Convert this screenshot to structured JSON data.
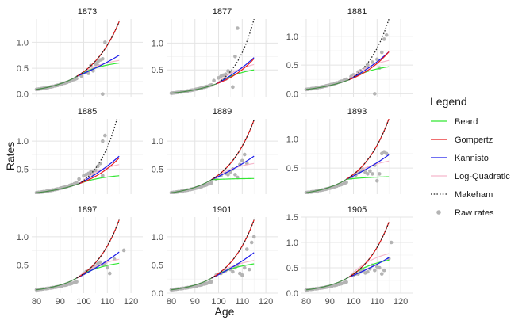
{
  "chart_data": {
    "type": "faceted-line-scatter",
    "xlabel": "Age",
    "ylabel": "Rates",
    "x_ticks": [
      80,
      90,
      100,
      110,
      120
    ],
    "xlim": [
      78,
      125
    ],
    "legend": {
      "title": "Legend",
      "placement": "right",
      "items": [
        {
          "label": "Beard",
          "color": "#33e633",
          "style": "line"
        },
        {
          "label": "Gompertz",
          "color": "#e8191b",
          "style": "line"
        },
        {
          "label": "Kannisto",
          "color": "#1b1bea",
          "style": "line"
        },
        {
          "label": "Log-Quadratic",
          "color": "#f5b8cc",
          "style": "line"
        },
        {
          "label": "Makeham",
          "color": "#222222",
          "style": "dotted"
        },
        {
          "label": "Raw rates",
          "color": "#b4b4b4",
          "style": "point"
        }
      ]
    },
    "panels": [
      {
        "title": "1873",
        "ylim": [
          -0.05,
          1.45
        ],
        "yticks": [
          0.0,
          0.5,
          1.0
        ],
        "gompertz": [
          0.09,
          1.4
        ],
        "makeham_end": 1.4,
        "kannisto_end": 0.75,
        "beard_end": 0.6,
        "logquad_end": 0.65,
        "split_age": 97,
        "has_makeham_fit": false,
        "raw_extra": [
          [
            99,
            0.35
          ],
          [
            101,
            0.42
          ],
          [
            102,
            0.4
          ],
          [
            103,
            0.55
          ],
          [
            104,
            0.5
          ],
          [
            104,
            0.45
          ],
          [
            105,
            0.58
          ],
          [
            106,
            0.62
          ],
          [
            107,
            0.66
          ],
          [
            108,
            0.68
          ],
          [
            109,
            1.0
          ],
          [
            108,
            0.0
          ],
          [
            102,
            0.45
          ],
          [
            106,
            0.55
          ]
        ]
      },
      {
        "title": "1877",
        "ylim": [
          0.0,
          1.45
        ],
        "yticks": [
          0.5,
          1.0
        ],
        "gompertz": [
          0.065,
          0.71
        ],
        "makeham_end": 1.45,
        "kannisto_end": 0.73,
        "beard_end": 0.5,
        "logquad_end": 0.6,
        "split_age": 99,
        "has_makeham_fit": true,
        "raw_extra": [
          [
            98,
            0.3
          ],
          [
            100,
            0.35
          ],
          [
            101,
            0.38
          ],
          [
            102,
            0.4
          ],
          [
            103,
            0.42
          ],
          [
            104,
            0.48
          ],
          [
            105,
            0.45
          ],
          [
            106,
            0.18
          ],
          [
            107,
            0.75
          ],
          [
            108,
            1.28
          ],
          [
            103,
            0.33
          ]
        ]
      },
      {
        "title": "1881",
        "ylim": [
          -0.05,
          1.3
        ],
        "yticks": [
          0.0,
          0.5,
          1.0
        ],
        "gompertz": [
          0.075,
          0.73
        ],
        "makeham_end": 1.3,
        "kannisto_end": 0.73,
        "beard_end": 0.47,
        "logquad_end": 0.58,
        "split_age": 98,
        "has_makeham_fit": true,
        "raw_extra": [
          [
            99,
            0.3
          ],
          [
            100,
            0.33
          ],
          [
            102,
            0.38
          ],
          [
            103,
            0.4
          ],
          [
            105,
            0.45
          ],
          [
            106,
            0.5
          ],
          [
            108,
            0.55
          ],
          [
            109,
            0.0
          ],
          [
            110,
            0.6
          ],
          [
            112,
            0.72
          ],
          [
            113,
            0.95
          ],
          [
            114,
            1.02
          ],
          [
            111,
            0.45
          ]
        ]
      },
      {
        "title": "1885",
        "ylim": [
          0.05,
          1.4
        ],
        "yticks": [
          0.5,
          1.0
        ],
        "gompertz": [
          0.075,
          0.7
        ],
        "makeham_end": 1.55,
        "kannisto_end": 0.73,
        "beard_end": 0.38,
        "logquad_end": 0.58,
        "split_age": 98,
        "has_makeham_fit": true,
        "raw_extra": [
          [
            98,
            0.32
          ],
          [
            100,
            0.38
          ],
          [
            101,
            0.4
          ],
          [
            102,
            0.42
          ],
          [
            103,
            0.45
          ],
          [
            104,
            0.46
          ],
          [
            105,
            0.48
          ],
          [
            106,
            0.55
          ],
          [
            107,
            0.6
          ],
          [
            108,
            0.38
          ],
          [
            108,
            1.0
          ],
          [
            109,
            1.1
          ],
          [
            104,
            0.4
          ]
        ]
      },
      {
        "title": "1889",
        "ylim": [
          0.05,
          1.4
        ],
        "yticks": [
          0.5,
          1.0
        ],
        "gompertz": [
          0.075,
          1.38
        ],
        "makeham_end": 1.38,
        "kannisto_end": 0.73,
        "beard_end": 0.33,
        "logquad_end": 0.6,
        "split_age": 97,
        "has_makeham_fit": false,
        "raw_extra": [
          [
            99,
            0.32
          ],
          [
            101,
            0.38
          ],
          [
            103,
            0.42
          ],
          [
            104,
            0.4
          ],
          [
            105,
            0.45
          ],
          [
            106,
            0.5
          ],
          [
            107,
            0.4
          ],
          [
            108,
            0.35
          ],
          [
            109,
            0.58
          ],
          [
            110,
            0.65
          ],
          [
            111,
            0.76
          ],
          [
            112,
            0.6
          ]
        ]
      },
      {
        "title": "1893",
        "ylim": [
          0.05,
          1.35
        ],
        "yticks": [
          0.5,
          1.0
        ],
        "gompertz": [
          0.075,
          1.35
        ],
        "makeham_end": 1.35,
        "kannisto_end": 0.73,
        "beard_end": 0.35,
        "logquad_end": 0.62,
        "split_age": 97,
        "has_makeham_fit": false,
        "raw_extra": [
          [
            99,
            0.33
          ],
          [
            101,
            0.38
          ],
          [
            102,
            0.42
          ],
          [
            103,
            0.45
          ],
          [
            104,
            0.48
          ],
          [
            105,
            0.43
          ],
          [
            106,
            0.4
          ],
          [
            107,
            0.45
          ],
          [
            108,
            0.4
          ],
          [
            109,
            0.55
          ],
          [
            110,
            0.28
          ],
          [
            111,
            0.4
          ],
          [
            112,
            0.75
          ],
          [
            113,
            0.78
          ],
          [
            114,
            0.75
          ]
        ]
      },
      {
        "title": "1897",
        "ylim": [
          0.0,
          1.35
        ],
        "yticks": [
          0.5,
          1.0
        ],
        "gompertz": [
          0.06,
          1.3
        ],
        "makeham_end": 1.3,
        "kannisto_end": 0.73,
        "beard_end": 0.53,
        "logquad_end": 0.6,
        "split_age": 97,
        "has_makeham_fit": false,
        "raw_extra": [
          [
            100,
            0.35
          ],
          [
            101,
            0.38
          ],
          [
            102,
            0.4
          ],
          [
            103,
            0.43
          ],
          [
            104,
            0.46
          ],
          [
            105,
            0.48
          ],
          [
            106,
            0.52
          ],
          [
            107,
            0.55
          ],
          [
            108,
            0.5
          ],
          [
            109,
            0.53
          ],
          [
            110,
            0.45
          ],
          [
            111,
            0.35
          ],
          [
            113,
            0.6
          ],
          [
            117,
            0.76
          ]
        ]
      },
      {
        "title": "1901",
        "ylim": [
          0.0,
          1.35
        ],
        "yticks": [
          0.0,
          0.5,
          1.0
        ],
        "gompertz": [
          0.06,
          1.3
        ],
        "makeham_end": 1.3,
        "kannisto_end": 0.72,
        "beard_end": 0.52,
        "logquad_end": 0.58,
        "split_age": 97,
        "has_makeham_fit": false,
        "raw_extra": [
          [
            99,
            0.32
          ],
          [
            101,
            0.35
          ],
          [
            102,
            0.38
          ],
          [
            103,
            0.4
          ],
          [
            105,
            0.42
          ],
          [
            106,
            0.38
          ],
          [
            107,
            0.45
          ],
          [
            108,
            0.5
          ],
          [
            109,
            0.35
          ],
          [
            110,
            0.32
          ],
          [
            111,
            0.45
          ],
          [
            112,
            0.78
          ],
          [
            113,
            0.42
          ],
          [
            114,
            0.9
          ],
          [
            115,
            1.0
          ]
        ]
      },
      {
        "title": "1905",
        "ylim": [
          0.0,
          1.5
        ],
        "yticks": [
          0.0,
          0.5,
          1.0,
          1.5
        ],
        "gompertz": [
          0.065,
          1.4
        ],
        "makeham_end": 1.4,
        "kannisto_end": 0.7,
        "beard_end": 0.65,
        "logquad_end": 0.78,
        "split_age": 98,
        "has_makeham_fit": false,
        "raw_extra": [
          [
            100,
            0.35
          ],
          [
            101,
            0.38
          ],
          [
            102,
            0.38
          ],
          [
            103,
            0.42
          ],
          [
            104,
            0.45
          ],
          [
            105,
            0.4
          ],
          [
            106,
            0.42
          ],
          [
            107,
            0.48
          ],
          [
            108,
            0.55
          ],
          [
            109,
            0.45
          ],
          [
            110,
            0.52
          ],
          [
            111,
            0.5
          ],
          [
            112,
            0.38
          ],
          [
            113,
            0.45
          ],
          [
            115,
            0.68
          ],
          [
            116,
            1.0
          ]
        ]
      }
    ]
  }
}
